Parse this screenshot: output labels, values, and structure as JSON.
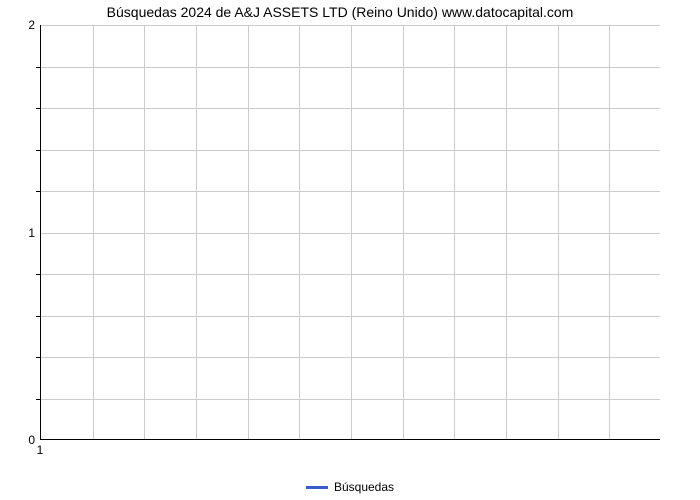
{
  "chart": {
    "type": "line",
    "title": "Búsquedas 2024 de A&J ASSETS LTD (Reino Unido) www.datocapital.com",
    "title_fontsize": 14,
    "background_color": "#ffffff",
    "grid_color": "#cccccc",
    "axis_color": "#000000",
    "y": {
      "min": 0,
      "max": 2,
      "major_ticks": [
        0,
        1,
        2
      ],
      "minor_ticks": [
        0.2,
        0.4,
        0.6,
        0.8,
        1.2,
        1.4,
        1.6,
        1.8
      ],
      "grid_lines": [
        0.2,
        0.4,
        0.6,
        0.8,
        1.0,
        1.2,
        1.4,
        1.6,
        1.8,
        2.0
      ]
    },
    "x": {
      "min": 1,
      "max": 12,
      "ticks": [
        1
      ],
      "grid_positions": [
        1,
        2,
        3,
        4,
        5,
        6,
        7,
        8,
        9,
        10,
        11,
        12
      ]
    },
    "series": [],
    "legend": {
      "label": "Búsquedas",
      "color": "#3b5dc9",
      "position": "bottom"
    },
    "label_fontsize": 12
  }
}
